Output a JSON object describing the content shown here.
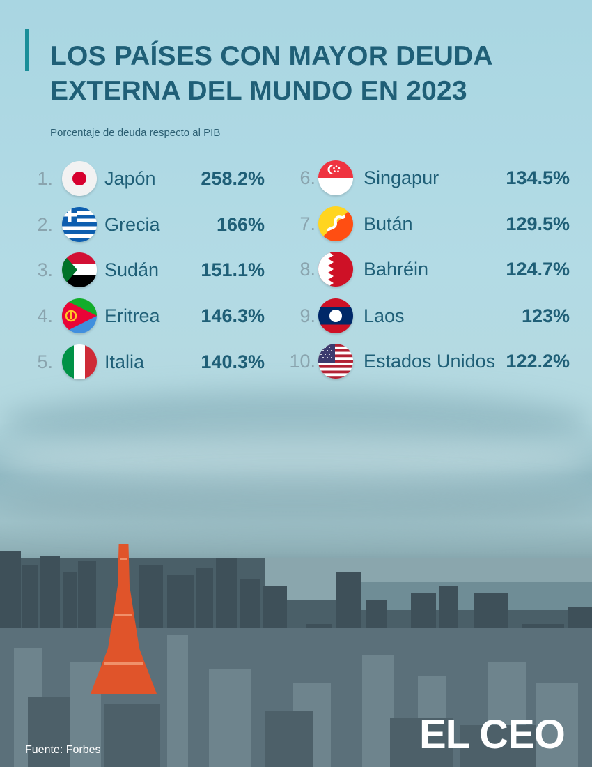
{
  "header": {
    "title_line1": "LOS PAÍSES CON MAYOR DEUDA",
    "title_line2": "EXTERNA DEL MUNDO EN 2023",
    "subtitle": "Porcentaje de deuda respecto al PIB"
  },
  "footer": {
    "source": "Fuente: Forbes",
    "brand": "EL CEO"
  },
  "colors": {
    "title": "#1f5f77",
    "accent": "#1a8e99",
    "rank": "#8aa4ae"
  },
  "chart_data": {
    "type": "table",
    "columns": [
      "rank",
      "country",
      "value"
    ],
    "rows": [
      {
        "rank": "1.",
        "country": "Japón",
        "value": "258.2%",
        "flag": "japan-flag-icon"
      },
      {
        "rank": "2.",
        "country": "Grecia",
        "value": "166%",
        "flag": "greece-flag-icon"
      },
      {
        "rank": "3.",
        "country": "Sudán",
        "value": "151.1%",
        "flag": "sudan-flag-icon"
      },
      {
        "rank": "4.",
        "country": "Eritrea",
        "value": "146.3%",
        "flag": "eritrea-flag-icon"
      },
      {
        "rank": "5.",
        "country": "Italia",
        "value": "140.3%",
        "flag": "italy-flag-icon"
      },
      {
        "rank": "6.",
        "country": "Singapur",
        "value": "134.5%",
        "flag": "singapore-flag-icon"
      },
      {
        "rank": "7.",
        "country": "Bután",
        "value": "129.5%",
        "flag": "bhutan-flag-icon"
      },
      {
        "rank": "8.",
        "country": "Bahréin",
        "value": "124.7%",
        "flag": "bahrain-flag-icon"
      },
      {
        "rank": "9.",
        "country": "Laos",
        "value": "123%",
        "flag": "laos-flag-icon"
      },
      {
        "rank": "10.",
        "country": "Estados Unidos",
        "value": "122.2%",
        "flag": "usa-flag-icon"
      }
    ]
  }
}
